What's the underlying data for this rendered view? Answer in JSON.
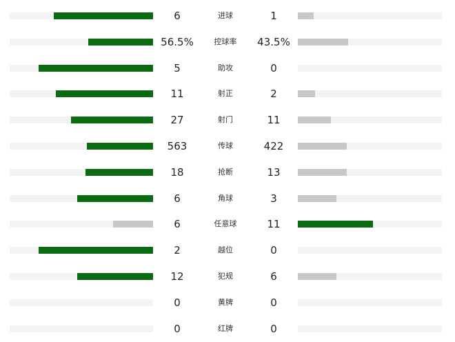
{
  "colors": {
    "leader": "#0a6b12",
    "trailer": "#c7c7c7",
    "track": "#f3f3f3"
  },
  "stats": [
    {
      "label": "进球",
      "home": "6",
      "away": "1",
      "home_frac": 0.69,
      "away_frac": 0.11
    },
    {
      "label": "控球率",
      "home": "56.5%",
      "away": "43.5%",
      "home_frac": 0.45,
      "away_frac": 0.35
    },
    {
      "label": "助攻",
      "home": "5",
      "away": "0",
      "home_frac": 0.8,
      "away_frac": 0.0
    },
    {
      "label": "射正",
      "home": "11",
      "away": "2",
      "home_frac": 0.68,
      "away_frac": 0.12
    },
    {
      "label": "射门",
      "home": "27",
      "away": "11",
      "home_frac": 0.57,
      "away_frac": 0.23
    },
    {
      "label": "传球",
      "home": "563",
      "away": "422",
      "home_frac": 0.46,
      "away_frac": 0.34
    },
    {
      "label": "抢断",
      "home": "18",
      "away": "13",
      "home_frac": 0.47,
      "away_frac": 0.34
    },
    {
      "label": "角球",
      "home": "6",
      "away": "3",
      "home_frac": 0.53,
      "away_frac": 0.27
    },
    {
      "label": "任意球",
      "home": "6",
      "away": "11",
      "home_frac": 0.28,
      "away_frac": 0.52
    },
    {
      "label": "越位",
      "home": "2",
      "away": "0",
      "home_frac": 0.8,
      "away_frac": 0.0
    },
    {
      "label": "犯规",
      "home": "12",
      "away": "6",
      "home_frac": 0.53,
      "away_frac": 0.27
    },
    {
      "label": "黄牌",
      "home": "0",
      "away": "0",
      "home_frac": 0.0,
      "away_frac": 0.0
    },
    {
      "label": "红牌",
      "home": "0",
      "away": "0",
      "home_frac": 0.0,
      "away_frac": 0.0
    }
  ]
}
